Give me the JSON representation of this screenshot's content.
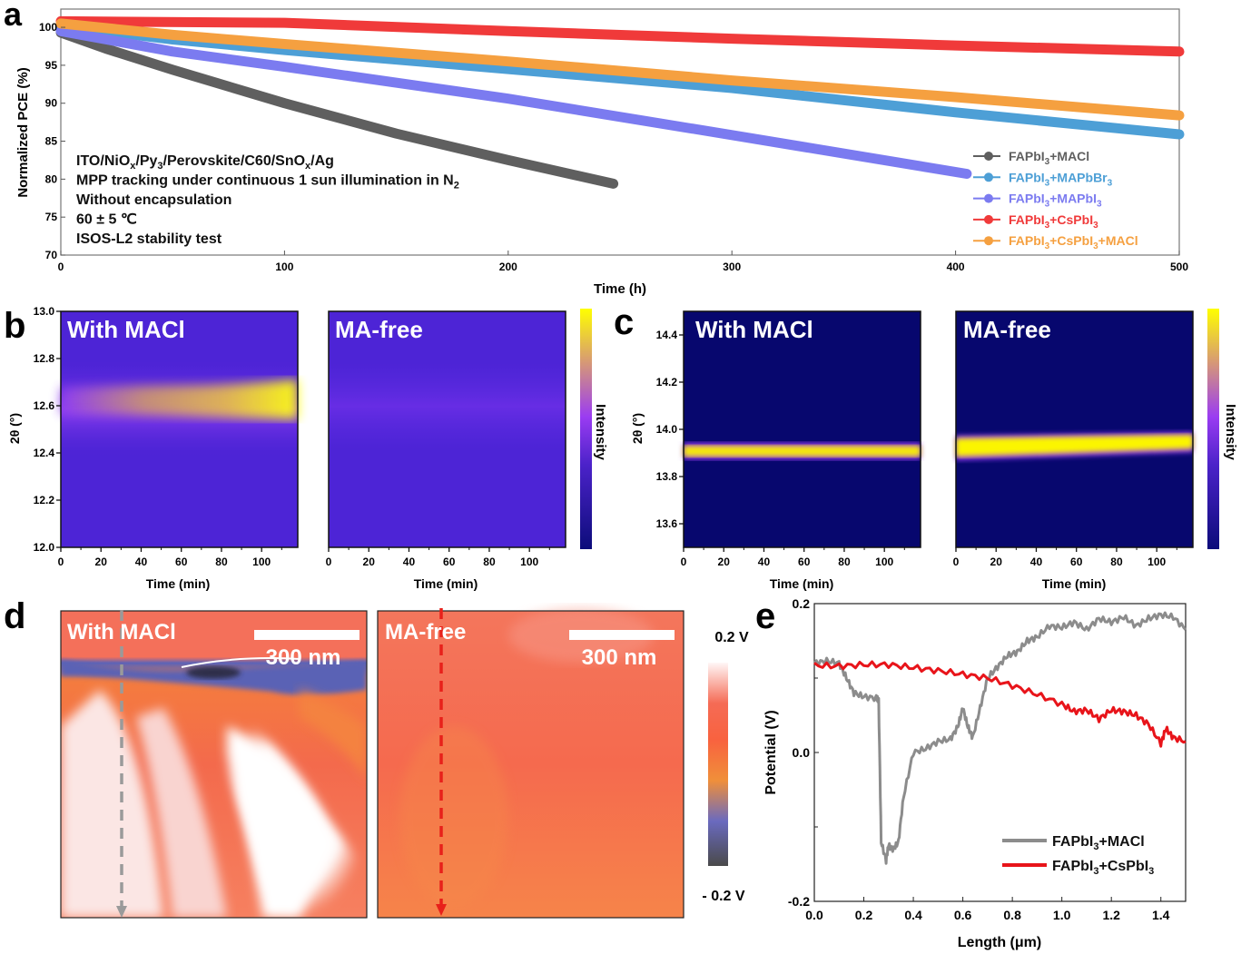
{
  "chart_data": [
    {
      "panel": "a",
      "type": "line",
      "xlabel": "Time (h)",
      "ylabel": "Normalized PCE (%)",
      "xlim": [
        0,
        500
      ],
      "ylim": [
        70,
        102.4
      ],
      "xticks": [
        0,
        100,
        200,
        300,
        400,
        500
      ],
      "yticks": [
        70,
        75,
        80,
        85,
        90,
        95,
        100
      ],
      "annotations": [
        {
          "parts": [
            [
              "ITO/NiO",
              ""
            ],
            [
              "x",
              "sub"
            ],
            [
              "/Py",
              ""
            ],
            [
              "3",
              "sub"
            ],
            [
              "/Perovskite/C60/SnO",
              ""
            ],
            [
              "x",
              "sub"
            ],
            [
              "/Ag",
              ""
            ]
          ]
        },
        {
          "parts": [
            [
              "MPP tracking under continuous 1 sun illumination in N",
              ""
            ],
            [
              "2",
              "sub"
            ]
          ]
        },
        {
          "parts": [
            [
              "Without encapsulation",
              ""
            ]
          ]
        },
        {
          "parts": [
            [
              "60 ± 5 ℃",
              ""
            ]
          ]
        },
        {
          "parts": [
            [
              "ISOS-L2 stability test",
              ""
            ]
          ]
        }
      ],
      "legend_position": "bottom-right",
      "series": [
        {
          "name": "FAPbI3+MACl",
          "label_parts": [
            [
              "FAPbI",
              ""
            ],
            [
              "3",
              "sub"
            ],
            [
              "+MACl",
              ""
            ]
          ],
          "color": "#5f5f5f",
          "x": [
            0,
            20,
            50,
            100,
            150,
            200,
            247
          ],
          "y": [
            99.3,
            97.2,
            94.4,
            90.0,
            86.0,
            82.5,
            79.4
          ]
        },
        {
          "name": "FAPbI3+MAPbBr3",
          "label_parts": [
            [
              "FAPbI",
              ""
            ],
            [
              "3",
              "sub"
            ],
            [
              "+MAPbBr",
              ""
            ],
            [
              "3",
              "sub"
            ]
          ],
          "color": "#4d9fd6",
          "x": [
            0,
            50,
            100,
            200,
            300,
            400,
            500
          ],
          "y": [
            100.2,
            98.4,
            97.0,
            94.5,
            92.0,
            88.8,
            85.9
          ]
        },
        {
          "name": "FAPbI3+MAPbI3",
          "label_parts": [
            [
              "FAPbI",
              ""
            ],
            [
              "3",
              "sub"
            ],
            [
              "+MAPbI",
              ""
            ],
            [
              "3",
              "sub"
            ]
          ],
          "color": "#7b7bf0",
          "x": [
            0,
            50,
            100,
            200,
            300,
            405
          ],
          "y": [
            99.5,
            96.8,
            94.8,
            90.6,
            85.8,
            80.7
          ]
        },
        {
          "name": "FAPbI3+CsPbI3",
          "label_parts": [
            [
              "FAPbI",
              ""
            ],
            [
              "3",
              "sub"
            ],
            [
              "+CsPbI",
              ""
            ],
            [
              "3",
              "sub"
            ]
          ],
          "color": "#f03a3a",
          "x": [
            0,
            100,
            200,
            300,
            400,
            500
          ],
          "y": [
            100.8,
            100.6,
            99.5,
            98.5,
            97.6,
            96.8
          ]
        },
        {
          "name": "FAPbI3+CsPbI3+MACl",
          "label_parts": [
            [
              "FAPbI",
              ""
            ],
            [
              "3",
              "sub"
            ],
            [
              "+CsPbI",
              ""
            ],
            [
              "3",
              "sub"
            ],
            [
              "+MACl",
              ""
            ]
          ],
          "color": "#f5a040",
          "x": [
            0,
            50,
            100,
            200,
            300,
            400,
            500
          ],
          "y": [
            100.5,
            99.0,
            97.8,
            95.5,
            93.0,
            90.8,
            88.4
          ]
        }
      ]
    },
    {
      "panel": "b",
      "type": "heatmap",
      "ylabel": "2θ (°)",
      "xlabel": "Time (min)",
      "xlim": [
        0,
        118
      ],
      "ylim": [
        12.0,
        13.0
      ],
      "xticks": [
        0,
        20,
        40,
        60,
        80,
        100
      ],
      "yticks": [
        "12.0",
        "12.2",
        "12.4",
        "12.6",
        "12.8",
        "13.0"
      ],
      "colorbar_label": "Intensity",
      "maps": [
        {
          "title": "With MACl",
          "peak_center": 12.64,
          "peak_intensity_start": 0.35,
          "peak_intensity_end": 1.0
        },
        {
          "title": "MA-free",
          "peak_center": 12.62,
          "peak_intensity_start": 0.12,
          "peak_intensity_end": 0.12
        }
      ]
    },
    {
      "panel": "c",
      "type": "heatmap",
      "ylabel": "2θ (°)",
      "xlabel": "Time (min)",
      "xlim": [
        0,
        118
      ],
      "ylim": [
        13.5,
        14.5
      ],
      "xticks": [
        0,
        20,
        40,
        60,
        80,
        100
      ],
      "yticks": [
        "13.6",
        "13.8",
        "14.0",
        "14.2",
        "14.4"
      ],
      "colorbar_label": "Intensity",
      "maps": [
        {
          "title": "With MACl",
          "peak_center_start": 13.91,
          "peak_center_end": 13.91,
          "width": 0.06
        },
        {
          "title": "MA-free",
          "peak_center_start": 13.92,
          "peak_center_end": 13.955,
          "width": 0.09
        }
      ]
    },
    {
      "panel": "d",
      "type": "heatmap",
      "maps": [
        {
          "title": "With MACl",
          "scale_bar": "300 nm",
          "line_color": "#999999"
        },
        {
          "title": "MA-free",
          "scale_bar": "300 nm",
          "line_color": "#e8201a"
        }
      ],
      "colorbar_max": "0.2 V",
      "colorbar_min": "- 0.2 V"
    },
    {
      "panel": "e",
      "type": "line",
      "xlabel": "Length (μm)",
      "ylabel": "Potential (V)",
      "xlim": [
        0,
        1.5
      ],
      "ylim": [
        -0.2,
        0.2
      ],
      "xticks": [
        "0.0",
        "0.2",
        "0.4",
        "0.6",
        "0.8",
        "1.0",
        "1.2",
        "1.4"
      ],
      "yticks": [
        "-0.2",
        "0.0",
        "0.2"
      ],
      "legend_position": "bottom-right",
      "series": [
        {
          "name": "FAPbI3+MACl",
          "label_parts": [
            [
              "FAPbI",
              ""
            ],
            [
              "3",
              "sub"
            ],
            [
              "+MACl",
              ""
            ]
          ],
          "color": "#8c8c8c",
          "x": [
            0,
            0.05,
            0.1,
            0.13,
            0.16,
            0.2,
            0.25,
            0.26,
            0.27,
            0.29,
            0.3,
            0.32,
            0.34,
            0.36,
            0.4,
            0.45,
            0.5,
            0.55,
            0.58,
            0.6,
            0.62,
            0.64,
            0.67,
            0.7,
            0.74,
            0.78,
            0.82,
            0.86,
            0.9,
            0.95,
            1.0,
            1.05,
            1.1,
            1.15,
            1.2,
            1.25,
            1.3,
            1.35,
            1.4,
            1.45,
            1.5
          ],
          "y": [
            0.12,
            0.123,
            0.12,
            0.1,
            0.08,
            0.075,
            0.073,
            0.07,
            -0.12,
            -0.145,
            -0.125,
            -0.13,
            -0.12,
            -0.06,
            0.0,
            0.005,
            0.015,
            0.018,
            0.035,
            0.06,
            0.035,
            0.02,
            0.06,
            0.1,
            0.115,
            0.13,
            0.135,
            0.15,
            0.155,
            0.17,
            0.168,
            0.175,
            0.165,
            0.18,
            0.175,
            0.182,
            0.17,
            0.18,
            0.185,
            0.182,
            0.165
          ]
        },
        {
          "name": "FAPbI3+CsPbI3",
          "label_parts": [
            [
              "FAPbI",
              ""
            ],
            [
              "3",
              "sub"
            ],
            [
              "+CsPbI",
              ""
            ],
            [
              "3",
              "sub"
            ]
          ],
          "color": "#e8141a",
          "x": [
            0,
            0.1,
            0.2,
            0.3,
            0.4,
            0.5,
            0.6,
            0.7,
            0.8,
            0.9,
            1.0,
            1.05,
            1.1,
            1.15,
            1.2,
            1.25,
            1.3,
            1.35,
            1.4,
            1.42,
            1.45,
            1.5
          ],
          "y": [
            0.117,
            0.116,
            0.118,
            0.118,
            0.114,
            0.11,
            0.105,
            0.1,
            0.09,
            0.078,
            0.065,
            0.055,
            0.057,
            0.045,
            0.057,
            0.055,
            0.05,
            0.038,
            0.012,
            0.032,
            0.02,
            0.015
          ]
        }
      ]
    }
  ],
  "panel_labels": [
    "a",
    "b",
    "c",
    "d",
    "e"
  ]
}
